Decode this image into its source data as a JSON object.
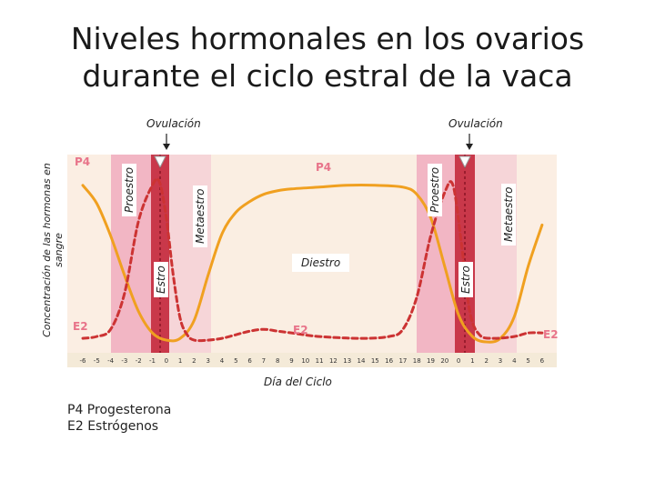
{
  "title_line1": "Niveles hormonales en los ovarios",
  "title_line2": "durante el ciclo estral de la vaca",
  "chart_data": {
    "type": "line",
    "title": "Niveles hormonales en los ovarios durante el ciclo estral de la vaca",
    "xlabel": "Día del Ciclo",
    "ylabel": "Concentración de las hormonas en sangre",
    "x_ticks": [
      "-6",
      "-5",
      "-4",
      "-3",
      "-2",
      "-1",
      "0",
      "1",
      "2",
      "3",
      "4",
      "5",
      "6",
      "7",
      "8",
      "9",
      "10",
      "11",
      "12",
      "13",
      "14",
      "15",
      "16",
      "17",
      "18",
      "19",
      "20",
      "0",
      "1",
      "2",
      "3",
      "4",
      "5",
      "6"
    ],
    "xlim": [
      0,
      33
    ],
    "ylim": [
      0,
      1
    ],
    "grid": false,
    "annotations": {
      "ovulation_1": "Ovulación",
      "ovulation_2": "Ovulación",
      "proestro_1": "Proestro",
      "estro_1": "Estro",
      "metaestro_1": "Metaestro",
      "diestro": "Diestro",
      "proestro_2": "Proestro",
      "estro_2": "Estro",
      "metaestro_2": "Metaestro"
    },
    "series": [
      {
        "name": "P4",
        "label_1": "P4",
        "label_2": "P4",
        "color": "#f0a020",
        "style": "solid",
        "points": [
          [
            0,
            0.9
          ],
          [
            1,
            0.8
          ],
          [
            2,
            0.62
          ],
          [
            3,
            0.4
          ],
          [
            4,
            0.2
          ],
          [
            5,
            0.08
          ],
          [
            6,
            0.04
          ],
          [
            7,
            0.05
          ],
          [
            8,
            0.15
          ],
          [
            9,
            0.4
          ],
          [
            10,
            0.63
          ],
          [
            11,
            0.75
          ],
          [
            12,
            0.81
          ],
          [
            13,
            0.85
          ],
          [
            14,
            0.87
          ],
          [
            15,
            0.88
          ],
          [
            17,
            0.89
          ],
          [
            19,
            0.9
          ],
          [
            21,
            0.9
          ],
          [
            23,
            0.89
          ],
          [
            24,
            0.85
          ],
          [
            25,
            0.72
          ],
          [
            26,
            0.45
          ],
          [
            27,
            0.18
          ],
          [
            28,
            0.06
          ],
          [
            29,
            0.03
          ],
          [
            30,
            0.05
          ],
          [
            31,
            0.17
          ],
          [
            32,
            0.45
          ],
          [
            33,
            0.68
          ]
        ]
      },
      {
        "name": "E2",
        "label_1": "E2",
        "label_2": "E2",
        "label_3": "E2",
        "color": "#cc3333",
        "style": "dashed",
        "points": [
          [
            0,
            0.05
          ],
          [
            1,
            0.06
          ],
          [
            2,
            0.1
          ],
          [
            3,
            0.3
          ],
          [
            4,
            0.7
          ],
          [
            5,
            0.9
          ],
          [
            5.5,
            0.92
          ],
          [
            6,
            0.72
          ],
          [
            6.5,
            0.4
          ],
          [
            7,
            0.16
          ],
          [
            7.5,
            0.07
          ],
          [
            8,
            0.04
          ],
          [
            9,
            0.04
          ],
          [
            10,
            0.05
          ],
          [
            11,
            0.07
          ],
          [
            12,
            0.09
          ],
          [
            13,
            0.1
          ],
          [
            14,
            0.09
          ],
          [
            15,
            0.08
          ],
          [
            17,
            0.06
          ],
          [
            20,
            0.05
          ],
          [
            22,
            0.06
          ],
          [
            23,
            0.1
          ],
          [
            24,
            0.28
          ],
          [
            25,
            0.62
          ],
          [
            26,
            0.86
          ],
          [
            26.6,
            0.9
          ],
          [
            27.2,
            0.58
          ],
          [
            27.8,
            0.2
          ],
          [
            28.5,
            0.07
          ],
          [
            29.5,
            0.05
          ],
          [
            31,
            0.06
          ],
          [
            32,
            0.08
          ],
          [
            33,
            0.08
          ]
        ]
      }
    ]
  },
  "legend": {
    "p4_label": "P4 Progesterona",
    "e2_label": "E2 Estrógenos"
  },
  "colors": {
    "band_estro": "#c9384a",
    "band_proestro": "#f2b6c4",
    "band_metaestro": "#f6d5d8",
    "band_diestro": "#faeee2",
    "plot_bg": "#fbeee3"
  }
}
